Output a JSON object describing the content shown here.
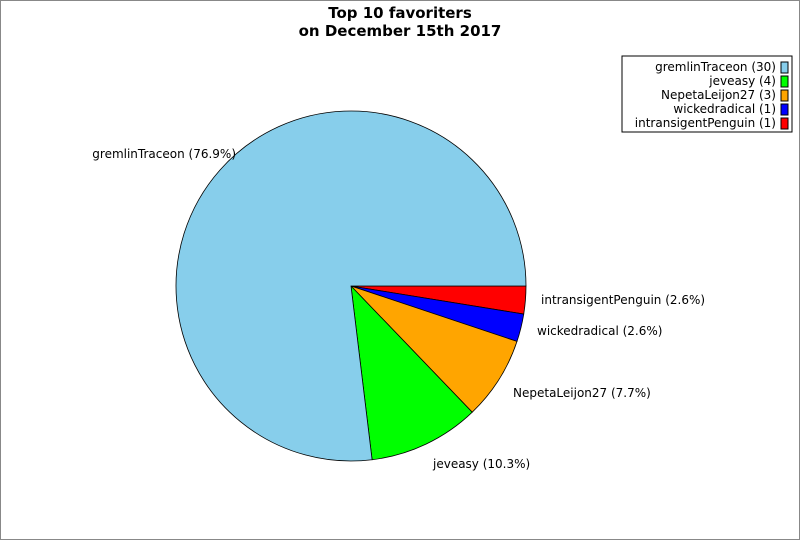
{
  "chart_data": {
    "type": "pie",
    "title": [
      "Top 10 favoriters",
      "on December 15th 2017"
    ],
    "slices": [
      {
        "name": "gremlinTraceon",
        "value": 30,
        "label": "gremlinTraceon (76.9%)",
        "legend": "gremlinTraceon (30)",
        "color": "#87CEEB"
      },
      {
        "name": "jeveasy",
        "value": 4,
        "label": "jeveasy (10.3%)",
        "legend": "jeveasy (4)",
        "color": "#00FF00"
      },
      {
        "name": "NepetaLeijon27",
        "value": 3,
        "label": "NepetaLeijon27 (7.7%)",
        "legend": "NepetaLeijon27 (3)",
        "color": "#FFA500"
      },
      {
        "name": "wickedradical",
        "value": 1,
        "label": "wickedradical (2.6%)",
        "legend": "wickedradical (1)",
        "color": "#0000FF"
      },
      {
        "name": "intransigentPenguin",
        "value": 1,
        "label": "intransigentPenguin (2.6%)",
        "legend": "intransigentPenguin (1)",
        "color": "#FF0000"
      }
    ],
    "legend_position": "top-right"
  }
}
